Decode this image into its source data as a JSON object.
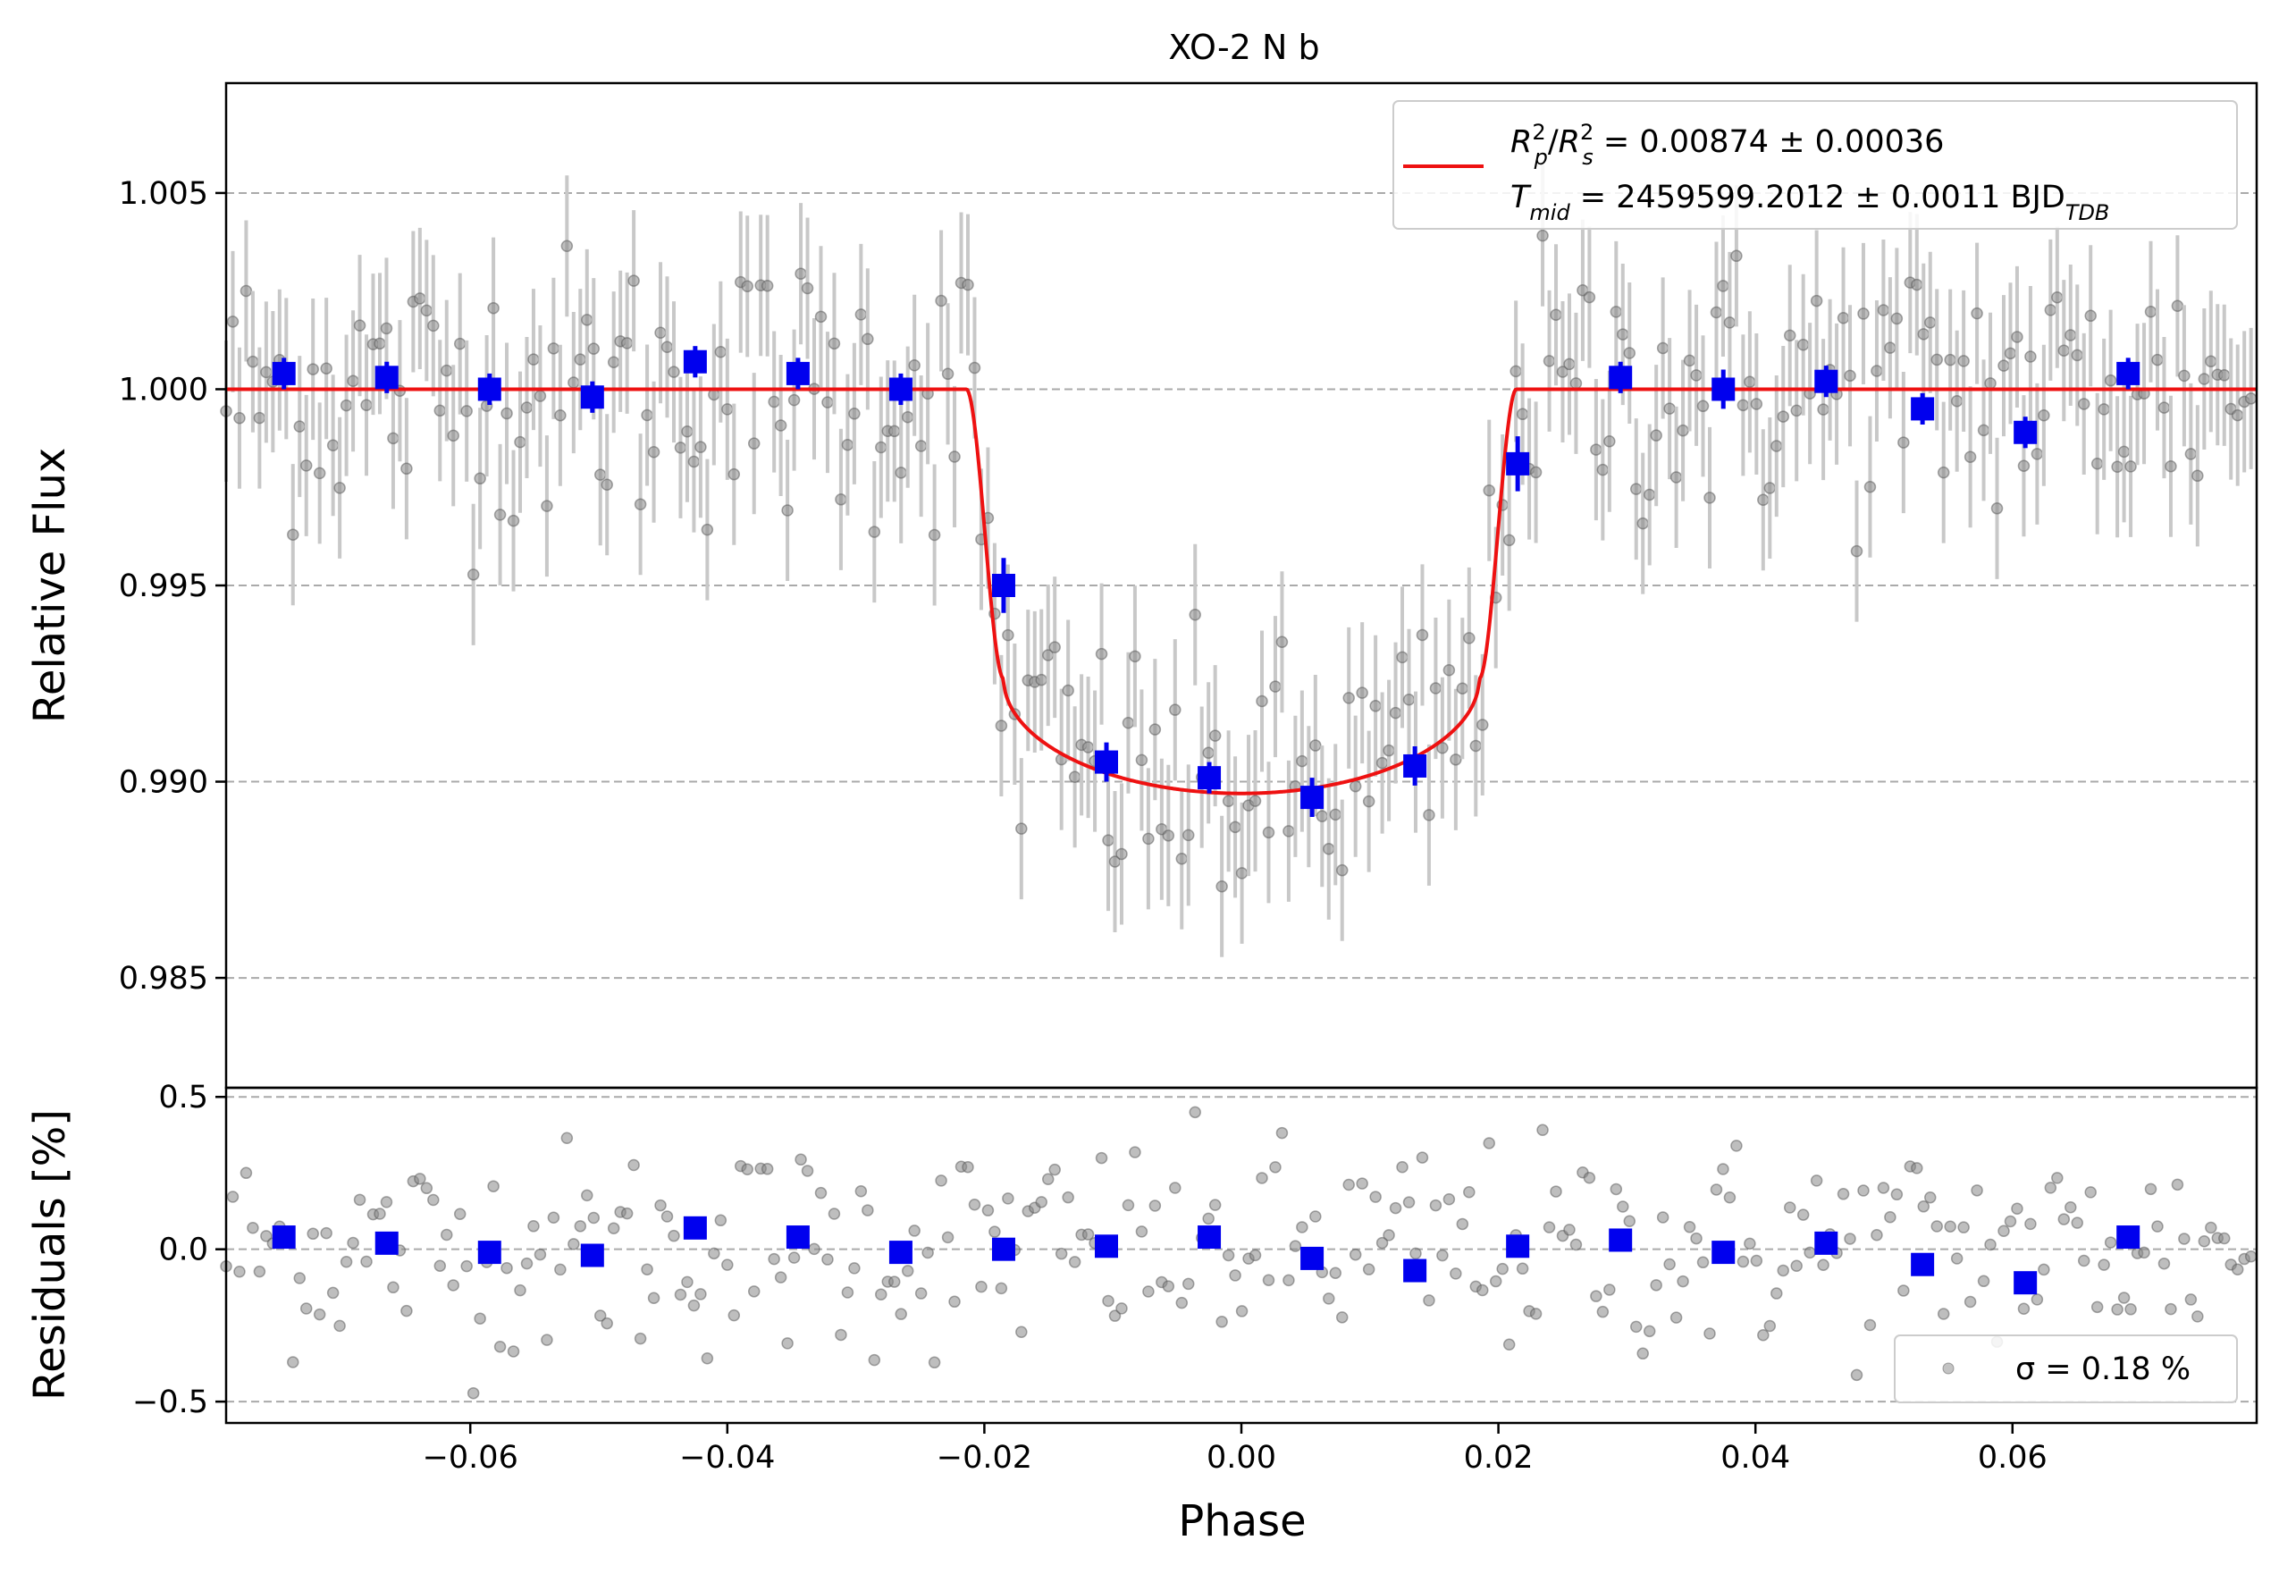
{
  "chart_data": [
    {
      "type": "scatter",
      "title": "XO-2 N b",
      "xlabel": "",
      "ylabel": "Relative Flux",
      "xlim": [
        -0.079,
        0.079
      ],
      "ylim": [
        0.9822,
        1.0078
      ],
      "yticks": [
        0.985,
        0.99,
        0.995,
        1.0,
        1.005
      ],
      "ytick_labels": [
        "0.985",
        "0.990",
        "0.995",
        "1.000",
        "1.005"
      ],
      "grid": "horizontal dashed",
      "legend": {
        "placement": "top-right",
        "line1": "R²p/R²s = 0.00874 ± 0.00036",
        "line1_parts": {
          "main1": "R",
          "sup1": "2",
          "sub1": "p",
          "slash": "/",
          "main2": "R",
          "sup2": "2",
          "sub2": "s",
          "rest": " = 0.00874 ± 0.00036"
        },
        "line2": "Tmid = 2459599.2012 ± 0.0011 BJDTDB",
        "line2_parts": {
          "main": "T",
          "sub": "mid",
          "rest": " = 2459599.2012 ± 0.0011 BJD",
          "sub2": "TDB"
        }
      },
      "model": {
        "name": "transit model",
        "color": "#ee1111",
        "baseline": 1.0,
        "min": 0.9897,
        "contact1": -0.0214,
        "contact2": -0.0185,
        "contact3": 0.0185,
        "contact4": 0.0214
      },
      "binned": {
        "color": "#0000ee",
        "x": [
          -0.0745,
          -0.0665,
          -0.0585,
          -0.0505,
          -0.0425,
          -0.0345,
          -0.0265,
          -0.0185,
          -0.0105,
          -0.0025,
          0.0055,
          0.0135,
          0.0215,
          0.0295,
          0.0375,
          0.0455,
          0.053,
          0.061,
          0.069
        ],
        "y": [
          1.0004,
          1.0003,
          1.0,
          0.9998,
          1.0007,
          1.0004,
          1.0,
          0.995,
          0.9905,
          0.9901,
          0.9896,
          0.9904,
          0.9981,
          1.0003,
          1.0,
          1.0002,
          0.9995,
          0.9989,
          1.0004
        ],
        "yerr": [
          0.0004,
          0.0004,
          0.0004,
          0.0004,
          0.0004,
          0.0004,
          0.0004,
          0.0007,
          0.0005,
          0.0004,
          0.0005,
          0.0005,
          0.0007,
          0.0004,
          0.0005,
          0.0004,
          0.0004,
          0.0004,
          0.0004
        ]
      },
      "raw": {
        "color": "#888888",
        "errorbar_color": "#c8c8c8",
        "typical_yerr": 0.0018,
        "x_start": -0.079,
        "x_step": 0.00052,
        "n_points": 304
      }
    },
    {
      "type": "scatter",
      "title": "",
      "xlabel": "Phase",
      "ylabel": "Residuals [%]",
      "xlim": [
        -0.079,
        0.079
      ],
      "ylim": [
        -0.57,
        0.53
      ],
      "xticks": [
        -0.06,
        -0.04,
        -0.02,
        0.0,
        0.02,
        0.04,
        0.06
      ],
      "xtick_labels": [
        "−0.06",
        "−0.04",
        "−0.02",
        "0.00",
        "0.02",
        "0.04",
        "0.06"
      ],
      "yticks": [
        -0.5,
        0.0,
        0.5
      ],
      "ytick_labels": [
        "−0.5",
        "0.0",
        "0.5"
      ],
      "grid": "horizontal dashed",
      "legend": {
        "placement": "bottom-right",
        "label": "σ = 0.18 %"
      },
      "binned": {
        "color": "#0000ee",
        "x": [
          -0.0745,
          -0.0665,
          -0.0585,
          -0.0505,
          -0.0425,
          -0.0345,
          -0.0265,
          -0.0185,
          -0.0105,
          -0.0025,
          0.0055,
          0.0135,
          0.0215,
          0.0295,
          0.0375,
          0.0455,
          0.053,
          0.061,
          0.069
        ],
        "y": [
          0.04,
          0.02,
          -0.01,
          -0.02,
          0.07,
          0.04,
          -0.01,
          0.0,
          0.01,
          0.04,
          -0.03,
          -0.07,
          0.01,
          0.03,
          -0.01,
          0.02,
          -0.05,
          -0.11,
          0.04
        ]
      },
      "raw": {
        "color": "#888888",
        "sigma_percent": 0.18
      }
    }
  ]
}
